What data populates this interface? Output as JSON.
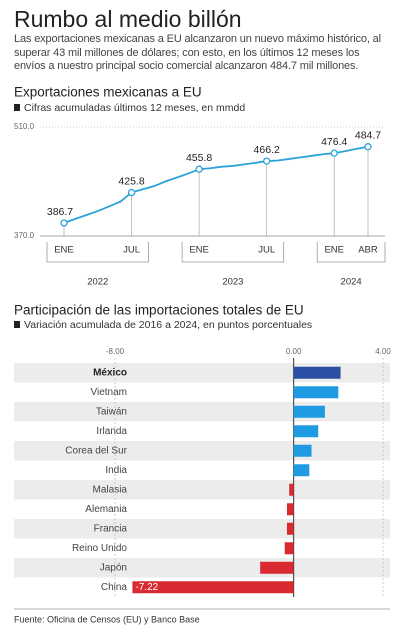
{
  "header": {
    "title": "Rumbo al medio billón",
    "intro": "Las exportaciones mexicanas a EU alcanzaron un nuevo máximo histórico, al superar 43 mil millones de dólares; con esto, en los últimos 12 meses los envíos a nuestro principal socio comercial alcanzaron 484.7 mil millones."
  },
  "chart_data": [
    {
      "type": "line",
      "title": "Exportaciones mexicanas a EU",
      "subtitle": "Cifras acumuladas últimos 12 meses, en mmdd",
      "categories": [
        "ENE",
        null,
        null,
        null,
        null,
        null,
        "JUL",
        null,
        null,
        null,
        null,
        null,
        "ENE",
        null,
        null,
        null,
        null,
        null,
        "JUL",
        null,
        null,
        null,
        null,
        null,
        "ENE",
        null,
        null,
        "ABR"
      ],
      "groups": [
        {
          "label": "2022",
          "from": 0,
          "to": 6
        },
        {
          "label": "2023",
          "from": 12,
          "to": 18
        },
        {
          "label": "2024",
          "from": 24,
          "to": 27
        }
      ],
      "values": [
        386.7,
        392,
        397,
        402,
        408,
        414,
        425.8,
        430,
        434,
        440,
        445,
        450,
        455.8,
        457,
        459,
        460,
        462,
        464,
        466.2,
        467,
        469,
        471,
        473,
        475,
        476.4,
        479,
        482,
        484.7
      ],
      "color": "#2aa3d8",
      "ylim": [
        370,
        510
      ],
      "yticks": [
        {
          "value": 370,
          "label": "370.0"
        },
        {
          "value": 510,
          "label": "510.0"
        }
      ]
    },
    {
      "type": "hbar",
      "title": "Participación de las importaciones totales de EU",
      "subtitle": "Variación acumulada de 2016 a 2024, en puntos porcentuales",
      "categories": [
        "México",
        "Vietnam",
        "Taiwán",
        "Irlanda",
        "Corea del Sur",
        "India",
        "Malasia",
        "Alemania",
        "Francia",
        "Reino Unido",
        "Japón",
        "China"
      ],
      "values": [
        2.1,
        2.0,
        1.4,
        1.1,
        0.8,
        0.7,
        -0.2,
        -0.3,
        -0.3,
        -0.4,
        -1.5,
        -7.22
      ],
      "value_labels": [
        null,
        null,
        null,
        null,
        null,
        null,
        null,
        null,
        null,
        null,
        null,
        "-7.22"
      ],
      "colors": [
        "#2b4fa3",
        "#1e9be2",
        "#1e9be2",
        "#1e9be2",
        "#1e9be2",
        "#1e9be2",
        "#d92a31",
        "#d92a31",
        "#d92a31",
        "#d92a31",
        "#d92a31",
        "#d92a31"
      ],
      "xlim": [
        -8,
        4
      ],
      "xticks": [
        {
          "value": -8,
          "label": "-8.00"
        },
        {
          "value": 0,
          "label": "0.00"
        },
        {
          "value": 4,
          "label": "4.00"
        }
      ]
    }
  ],
  "footer": {
    "source": "Fuente:  Oficina de Censos (EU) y Banco Base"
  }
}
